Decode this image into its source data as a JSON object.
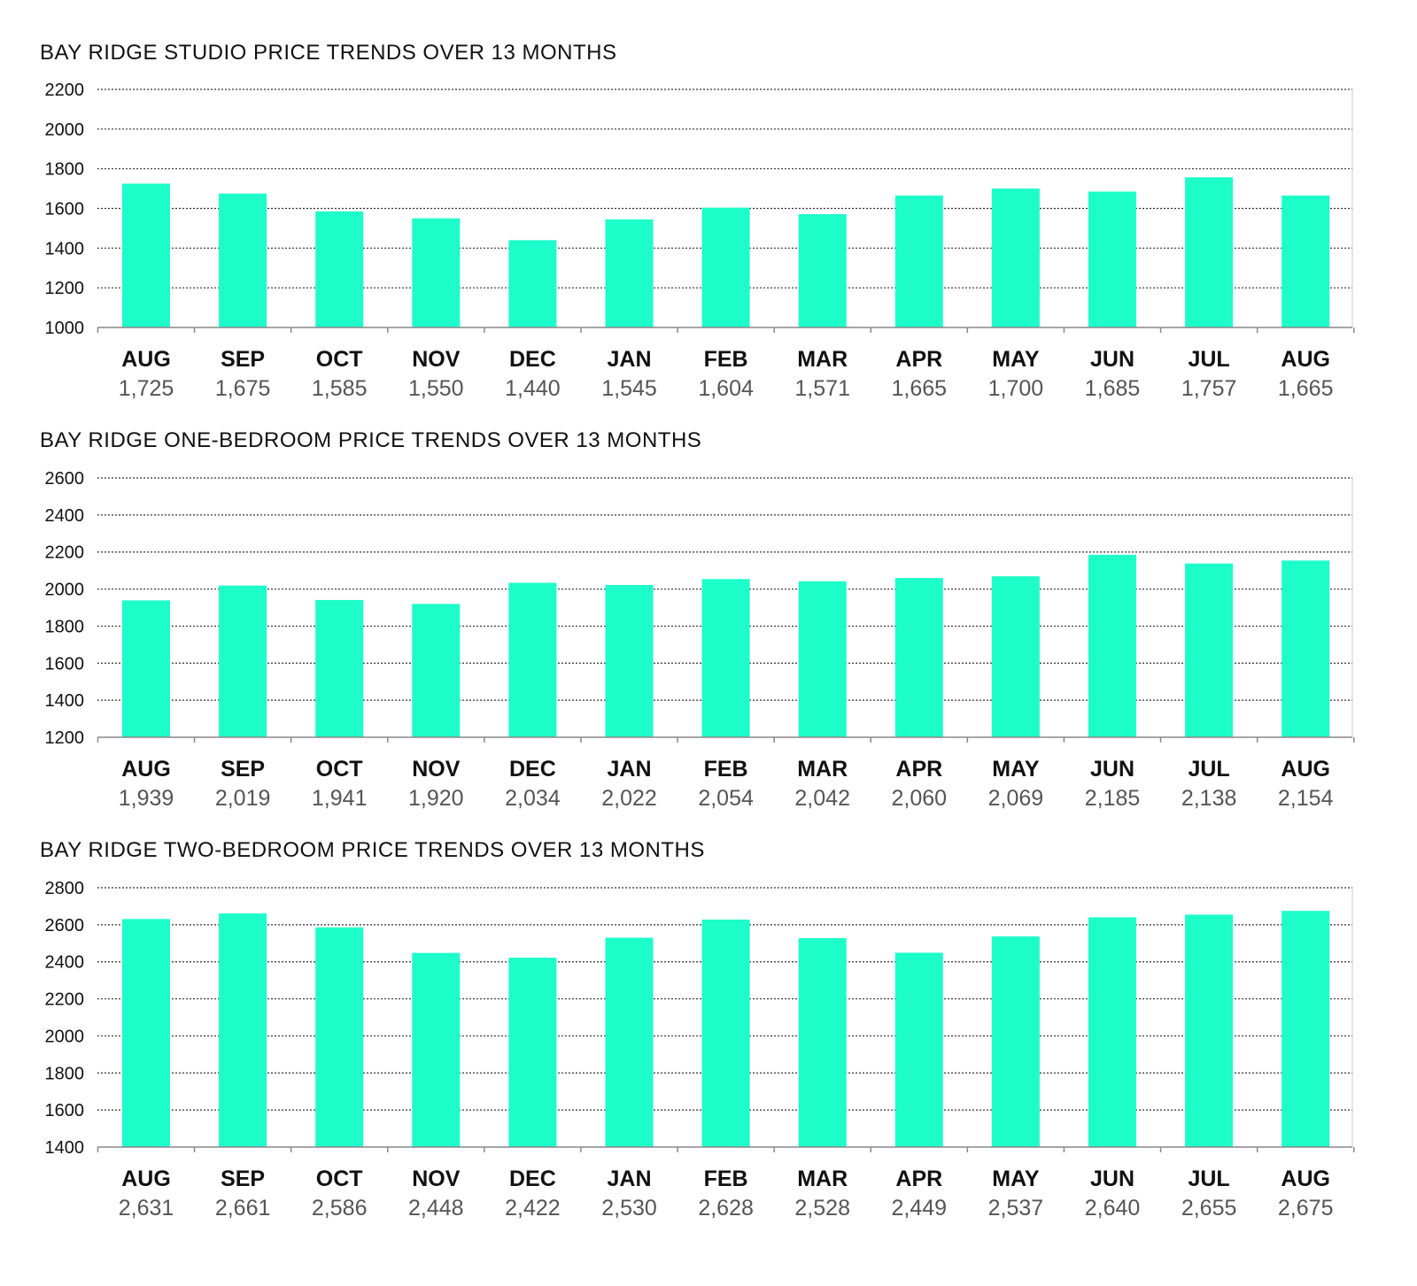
{
  "colors": {
    "bar": "#1dfdc9",
    "grid": "#333333",
    "axis": "#888888"
  },
  "chart_data": [
    {
      "type": "bar",
      "title": "BAY RIDGE STUDIO PRICE TRENDS OVER 13 MONTHS",
      "categories": [
        "AUG",
        "SEP",
        "OCT",
        "NOV",
        "DEC",
        "JAN",
        "FEB",
        "MAR",
        "APR",
        "MAY",
        "JUN",
        "JUL",
        "AUG"
      ],
      "values": [
        1725,
        1675,
        1585,
        1550,
        1440,
        1545,
        1604,
        1571,
        1665,
        1700,
        1685,
        1757,
        1665
      ],
      "value_labels": [
        "1,725",
        "1,675",
        "1,585",
        "1,550",
        "1,440",
        "1,545",
        "1,604",
        "1,571",
        "1,665",
        "1,700",
        "1,685",
        "1,757",
        "1,665"
      ],
      "ylim": [
        1000,
        2200
      ],
      "yticks": [
        1000,
        1200,
        1400,
        1600,
        1800,
        2000,
        2200
      ],
      "grid": true
    },
    {
      "type": "bar",
      "title": "BAY RIDGE ONE-BEDROOM PRICE TRENDS OVER 13 MONTHS",
      "categories": [
        "AUG",
        "SEP",
        "OCT",
        "NOV",
        "DEC",
        "JAN",
        "FEB",
        "MAR",
        "APR",
        "MAY",
        "JUN",
        "JUL",
        "AUG"
      ],
      "values": [
        1939,
        2019,
        1941,
        1920,
        2034,
        2022,
        2054,
        2042,
        2060,
        2069,
        2185,
        2138,
        2154
      ],
      "value_labels": [
        "1,939",
        "2,019",
        "1,941",
        "1,920",
        "2,034",
        "2,022",
        "2,054",
        "2,042",
        "2,060",
        "2,069",
        "2,185",
        "2,138",
        "2,154"
      ],
      "ylim": [
        1200,
        2600
      ],
      "yticks": [
        1200,
        1400,
        1600,
        1800,
        2000,
        2200,
        2400,
        2600
      ],
      "grid": true
    },
    {
      "type": "bar",
      "title": "BAY RIDGE TWO-BEDROOM PRICE TRENDS OVER 13 MONTHS",
      "categories": [
        "AUG",
        "SEP",
        "OCT",
        "NOV",
        "DEC",
        "JAN",
        "FEB",
        "MAR",
        "APR",
        "MAY",
        "JUN",
        "JUL",
        "AUG"
      ],
      "values": [
        2631,
        2661,
        2586,
        2448,
        2422,
        2530,
        2628,
        2528,
        2449,
        2537,
        2640,
        2655,
        2675
      ],
      "value_labels": [
        "2,631",
        "2,661",
        "2,586",
        "2,448",
        "2,422",
        "2,530",
        "2,628",
        "2,528",
        "2,449",
        "2,537",
        "2,640",
        "2,655",
        "2,675"
      ],
      "ylim": [
        1400,
        2800
      ],
      "yticks": [
        1400,
        1600,
        1800,
        2000,
        2200,
        2400,
        2600,
        2800
      ],
      "grid": true
    }
  ]
}
